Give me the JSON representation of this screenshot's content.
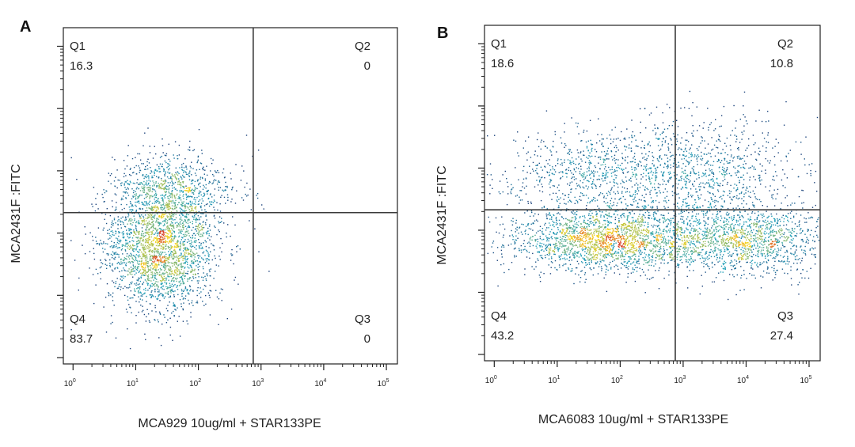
{
  "chart_data": [
    {
      "type": "scatter",
      "panel_label": "A",
      "xlabel": "MCA929 10ug/ml + STAR133PE",
      "ylabel": "MCA2431F :FITC",
      "x_scale": "log",
      "x_ticks": [
        1,
        10,
        100,
        1000,
        10000,
        100000
      ],
      "x_tick_labels": [
        {
          "base": "10",
          "exp": "0"
        },
        {
          "base": "10",
          "exp": "1"
        },
        {
          "base": "10",
          "exp": "2"
        },
        {
          "base": "10",
          "exp": "3"
        },
        {
          "base": "10",
          "exp": "4"
        },
        {
          "base": "10",
          "exp": "5"
        }
      ],
      "xlim": [
        0.7,
        150000
      ],
      "y_scale": "log",
      "gates": {
        "x": 750,
        "y": 0.45
      },
      "quadrants": [
        {
          "name": "Q1",
          "value": "16.3"
        },
        {
          "name": "Q2",
          "value": "0"
        },
        {
          "name": "Q3",
          "value": "0"
        },
        {
          "name": "Q4",
          "value": "83.7"
        }
      ],
      "populations": [
        {
          "x_center": 25,
          "y_frac": 0.34,
          "percent": 83.7
        },
        {
          "x_center": 35,
          "y_frac": 0.52,
          "percent": 16.3
        }
      ]
    },
    {
      "type": "scatter",
      "panel_label": "B",
      "xlabel": "MCA6083 10ug/ml + STAR133PE",
      "ylabel": "MCA2431F :FITC",
      "x_scale": "log",
      "x_ticks": [
        1,
        10,
        100,
        1000,
        10000,
        100000
      ],
      "x_tick_labels": [
        {
          "base": "10",
          "exp": "0"
        },
        {
          "base": "10",
          "exp": "1"
        },
        {
          "base": "10",
          "exp": "2"
        },
        {
          "base": "10",
          "exp": "3"
        },
        {
          "base": "10",
          "exp": "4"
        },
        {
          "base": "10",
          "exp": "5"
        }
      ],
      "xlim": [
        0.7,
        150000
      ],
      "y_scale": "log",
      "gates": {
        "x": 750,
        "y": 0.45
      },
      "quadrants": [
        {
          "name": "Q1",
          "value": "18.6"
        },
        {
          "name": "Q2",
          "value": "10.8"
        },
        {
          "name": "Q3",
          "value": "27.4"
        },
        {
          "name": "Q4",
          "value": "43.2"
        }
      ],
      "populations": [
        {
          "x_center": 60,
          "y_frac": 0.36,
          "percent": 43.2
        },
        {
          "x_center": 8000,
          "y_frac": 0.36,
          "percent": 27.4
        },
        {
          "x_center": 70,
          "y_frac": 0.55,
          "percent": 18.6
        },
        {
          "x_center": 3000,
          "y_frac": 0.57,
          "percent": 10.8
        }
      ]
    }
  ],
  "colors": {
    "density_low": "#1a2a6c",
    "density_mid": "#1f9fb8",
    "density_high": "#f4d21f",
    "density_peak": "#d8432b",
    "axis": "#222222",
    "gate_line": "#3a3a3a"
  }
}
